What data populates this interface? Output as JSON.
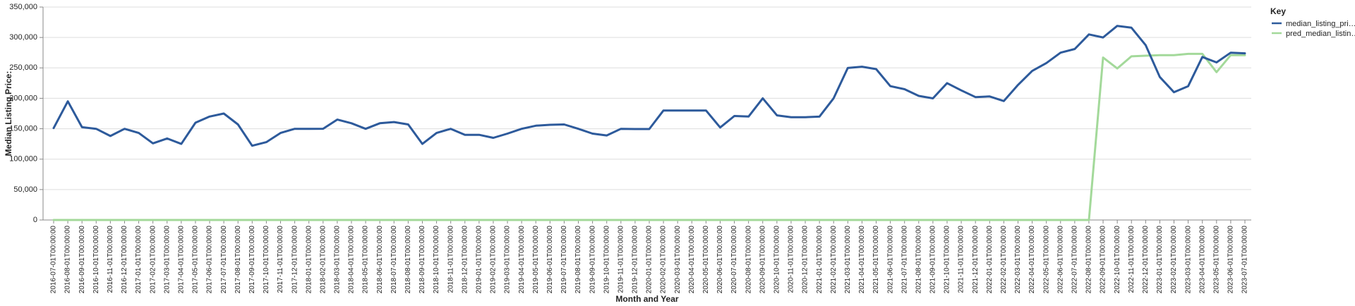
{
  "chart_data": {
    "type": "line",
    "xlabel": "Month and Year",
    "ylabel": "Median Listing Price:",
    "ylim": [
      0,
      350000
    ],
    "yticks": [
      "0",
      "50,000",
      "100,000",
      "150,000",
      "200,000",
      "250,000",
      "300,000",
      "350,000"
    ],
    "ytick_values": [
      0,
      50000,
      100000,
      150000,
      200000,
      250000,
      300000,
      350000
    ],
    "legend": {
      "title": "Key",
      "placement": "right"
    },
    "x": [
      "2016-07-01T00:00:00",
      "2016-08-01T00:00:00",
      "2016-09-01T00:00:00",
      "2016-10-01T00:00:00",
      "2016-11-01T00:00:00",
      "2016-12-01T00:00:00",
      "2017-01-01T00:00:00",
      "2017-02-01T00:00:00",
      "2017-03-01T00:00:00",
      "2017-04-01T00:00:00",
      "2017-05-01T00:00:00",
      "2017-06-01T00:00:00",
      "2017-07-01T00:00:00",
      "2017-08-01T00:00:00",
      "2017-09-01T00:00:00",
      "2017-10-01T00:00:00",
      "2017-11-01T00:00:00",
      "2017-12-01T00:00:00",
      "2018-01-01T00:00:00",
      "2018-02-01T00:00:00",
      "2018-03-01T00:00:00",
      "2018-04-01T00:00:00",
      "2018-05-01T00:00:00",
      "2018-06-01T00:00:00",
      "2018-07-01T00:00:00",
      "2018-08-01T00:00:00",
      "2018-09-01T00:00:00",
      "2018-10-01T00:00:00",
      "2018-11-01T00:00:00",
      "2018-12-01T00:00:00",
      "2019-01-01T00:00:00",
      "2019-02-01T00:00:00",
      "2019-03-01T00:00:00",
      "2019-04-01T00:00:00",
      "2019-05-01T00:00:00",
      "2019-06-01T00:00:00",
      "2019-07-01T00:00:00",
      "2019-08-01T00:00:00",
      "2019-09-01T00:00:00",
      "2019-10-01T00:00:00",
      "2019-11-01T00:00:00",
      "2019-12-01T00:00:00",
      "2020-01-01T00:00:00",
      "2020-02-01T00:00:00",
      "2020-03-01T00:00:00",
      "2020-04-01T00:00:00",
      "2020-05-01T00:00:00",
      "2020-06-01T00:00:00",
      "2020-07-01T00:00:00",
      "2020-08-01T00:00:00",
      "2020-09-01T00:00:00",
      "2020-10-01T00:00:00",
      "2020-11-01T00:00:00",
      "2020-12-01T00:00:00",
      "2021-01-01T00:00:00",
      "2021-02-01T00:00:00",
      "2021-03-01T00:00:00",
      "2021-04-01T00:00:00",
      "2021-05-01T00:00:00",
      "2021-06-01T00:00:00",
      "2021-07-01T00:00:00",
      "2021-08-01T00:00:00",
      "2021-09-01T00:00:00",
      "2021-10-01T00:00:00",
      "2021-11-01T00:00:00",
      "2021-12-01T00:00:00",
      "2022-01-01T00:00:00",
      "2022-02-01T00:00:00",
      "2022-03-01T00:00:00",
      "2022-04-01T00:00:00",
      "2022-05-01T00:00:00",
      "2022-06-01T00:00:00",
      "2022-07-01T00:00:00",
      "2022-08-01T00:00:00",
      "2022-09-01T00:00:00",
      "2022-10-01T00:00:00",
      "2022-11-01T00:00:00",
      "2022-12-01T00:00:00",
      "2023-01-01T00:00:00",
      "2023-02-01T00:00:00",
      "2023-03-01T00:00:00",
      "2023-04-01T00:00:00",
      "2023-05-01T00:00:00",
      "2023-06-01T00:00:00",
      "2023-07-01T00:00:00"
    ],
    "series": [
      {
        "name": "median_listing_pri…",
        "color": "#2d5a9b",
        "values": [
          151000,
          195000,
          152500,
          149900,
          138000,
          149900,
          143000,
          126000,
          134000,
          125000,
          159900,
          170000,
          175000,
          157000,
          122000,
          128000,
          143000,
          149900,
          149900,
          150000,
          165000,
          159000,
          149900,
          159000,
          161000,
          157000,
          125000,
          143000,
          149900,
          139900,
          140000,
          135000,
          142000,
          149900,
          155000,
          156500,
          157000,
          149900,
          142000,
          139000,
          149900,
          149500,
          149500,
          180000,
          180000,
          180000,
          180000,
          152000,
          171000,
          170000,
          200000,
          172000,
          169000,
          169000,
          169900,
          200000,
          249900,
          252000,
          248000,
          220000,
          215000,
          204000,
          199900,
          225000,
          213000,
          202000,
          203000,
          195500,
          222000,
          245000,
          258000,
          275000,
          281000,
          305000,
          300000,
          319000,
          316000,
          287500,
          235000,
          210000,
          220000,
          268000,
          259000,
          275000,
          274000
        ]
      },
      {
        "name": "pred_median_listin…",
        "color": "#a3d99a",
        "values": [
          0,
          0,
          0,
          0,
          0,
          0,
          0,
          0,
          0,
          0,
          0,
          0,
          0,
          0,
          0,
          0,
          0,
          0,
          0,
          0,
          0,
          0,
          0,
          0,
          0,
          0,
          0,
          0,
          0,
          0,
          0,
          0,
          0,
          0,
          0,
          0,
          0,
          0,
          0,
          0,
          0,
          0,
          0,
          0,
          0,
          0,
          0,
          0,
          0,
          0,
          0,
          0,
          0,
          0,
          0,
          0,
          0,
          0,
          0,
          0,
          0,
          0,
          0,
          0,
          0,
          0,
          0,
          0,
          0,
          0,
          0,
          0,
          0,
          0,
          267000,
          249000,
          269000,
          270000,
          271000,
          271000,
          273000,
          273000,
          243000,
          271000,
          271000
        ]
      }
    ]
  }
}
